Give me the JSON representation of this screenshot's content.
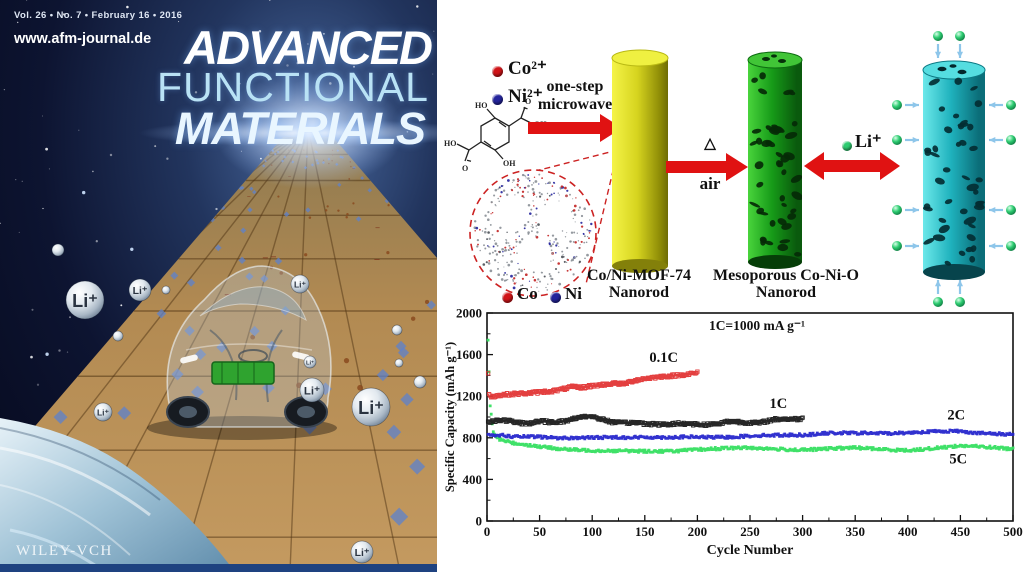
{
  "cover": {
    "issue_info": "Vol. 26 • No. 7 • February 16 • 2016",
    "website": "www.afm-journal.de",
    "title_line1": "ADVANCED",
    "title_line2": "FUNCTIONAL",
    "title_line3": "MATERIALS",
    "publisher": "WILEY-VCH",
    "li_label": "Li⁺"
  },
  "scheme": {
    "legend": [
      {
        "label": "Co²⁺",
        "color": "#d01418"
      },
      {
        "label": "Ni²⁺",
        "color": "#24249c"
      }
    ],
    "microwave_line1": "one-step",
    "microwave_line2": "microwave",
    "delta": "△",
    "air_label": "air",
    "li_step_label": "Li⁺",
    "li_color": "#2ecc71",
    "arrow_color": "#e01212",
    "product1_line1": "Co/Ni-MOF-74",
    "product1_line2": "Nanorod",
    "product2_line1": "Mesoporous Co-Ni-O",
    "product2_line2": "Nanorod",
    "atom_legend": [
      {
        "label": "Co",
        "color": "#d01418"
      },
      {
        "label": "Ni",
        "color": "#24249c"
      }
    ],
    "molecule_labels": [
      "HO",
      "O",
      "OH",
      "HO",
      "O",
      "OH"
    ]
  },
  "chart_data": {
    "type": "scatter",
    "annotation": "1C=1000 mA g⁻¹",
    "xlabel": "Cycle Number",
    "ylabel": "Specific Capacity (mAh g⁻¹)",
    "xlim": [
      0,
      500
    ],
    "ylim": [
      0,
      2000
    ],
    "xticks": [
      0,
      50,
      100,
      150,
      200,
      250,
      300,
      350,
      400,
      450,
      500
    ],
    "yticks": [
      0,
      400,
      800,
      1200,
      1600,
      2000
    ],
    "grid": false,
    "legend_position": "inline-labels",
    "series": [
      {
        "name": "5C",
        "color": "#35df60",
        "marker": "filled-square",
        "label_x": 448,
        "label_y": 555,
        "x": [
          1,
          3,
          6,
          10,
          25,
          50,
          75,
          100,
          125,
          150,
          175,
          200,
          225,
          250,
          275,
          300,
          325,
          350,
          375,
          400,
          425,
          450,
          475,
          500
        ],
        "y": [
          1750,
          1100,
          850,
          788,
          744,
          714,
          694,
          680,
          670,
          668,
          676,
          690,
          696,
          700,
          694,
          688,
          694,
          700,
          690,
          684,
          700,
          718,
          710,
          698
        ]
      },
      {
        "name": "2C",
        "color": "#2626cc",
        "marker": "filled-square",
        "label_x": 446,
        "label_y": 975,
        "x": [
          1,
          25,
          50,
          75,
          100,
          125,
          150,
          175,
          200,
          225,
          250,
          275,
          300,
          325,
          350,
          375,
          400,
          425,
          450,
          475,
          500
        ],
        "y": [
          835,
          806,
          812,
          800,
          796,
          806,
          810,
          800,
          806,
          810,
          816,
          822,
          832,
          846,
          840,
          846,
          852,
          856,
          864,
          846,
          830
        ]
      },
      {
        "name": "1C",
        "color": "#1a1a1a",
        "marker": "open-square",
        "label_x": 277,
        "label_y": 1085,
        "x": [
          1,
          10,
          20,
          30,
          40,
          50,
          60,
          70,
          80,
          90,
          100,
          110,
          120,
          130,
          140,
          150,
          160,
          170,
          180,
          190,
          200,
          210,
          220,
          230,
          240,
          250,
          260,
          270,
          280,
          290,
          300
        ],
        "y": [
          952,
          956,
          962,
          954,
          946,
          950,
          942,
          962,
          986,
          1002,
          992,
          976,
          962,
          946,
          936,
          930,
          942,
          936,
          930,
          926,
          932,
          940,
          936,
          946,
          950,
          956,
          950,
          962,
          972,
          986,
          996
        ]
      },
      {
        "name": "0.1C",
        "color": "#e23535",
        "marker": "open-square",
        "label_x": 168,
        "label_y": 1530,
        "x": [
          1,
          2,
          4,
          10,
          20,
          30,
          40,
          50,
          60,
          70,
          80,
          90,
          100,
          110,
          120,
          130,
          140,
          150,
          160,
          170,
          180,
          190,
          200
        ],
        "y": [
          1420,
          1230,
          1195,
          1200,
          1212,
          1222,
          1232,
          1246,
          1252,
          1262,
          1284,
          1276,
          1298,
          1314,
          1330,
          1322,
          1350,
          1364,
          1376,
          1390,
          1404,
          1418,
          1428
        ]
      }
    ]
  }
}
